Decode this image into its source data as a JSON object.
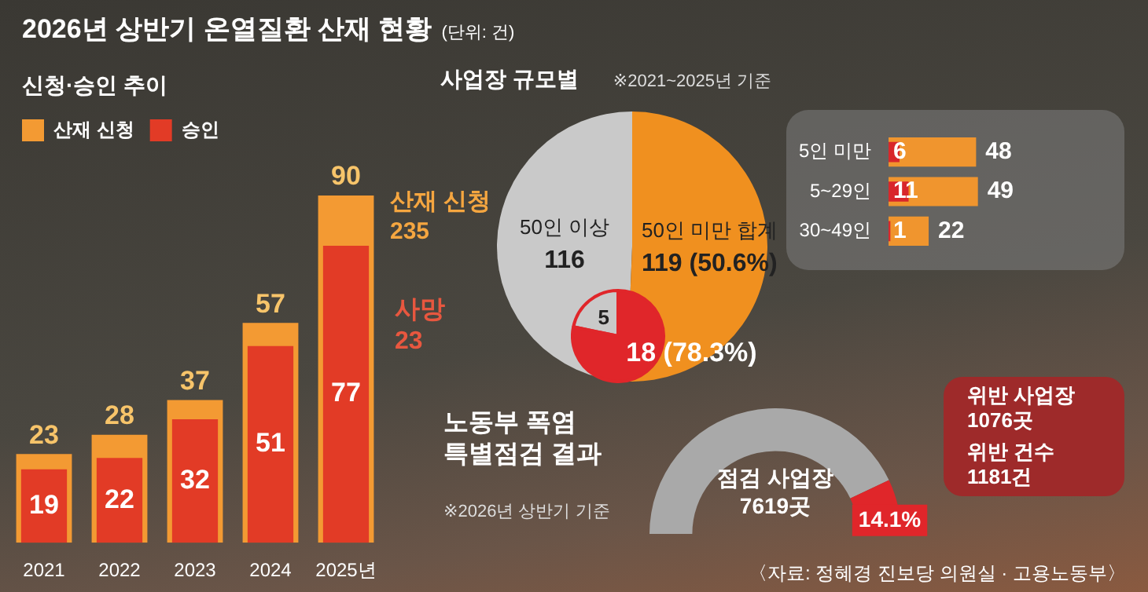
{
  "chart_data": [
    {
      "type": "bar",
      "title": "2026년 상반기 온열질환 산재 현황",
      "subtitle": "신청·승인 추이",
      "annotations": [
        "(단위: 건)"
      ],
      "categories": [
        "2021",
        "2022",
        "2023",
        "2024",
        "2025년"
      ],
      "series": [
        {
          "name": "산재 신청",
          "color": "#f39a33",
          "values": [
            23,
            28,
            37,
            57,
            90
          ]
        },
        {
          "name": "승인",
          "color": "#e23b26",
          "values": [
            19,
            22,
            32,
            51,
            77
          ]
        }
      ],
      "data_labels": true,
      "legend": "top left"
    },
    {
      "type": "pie",
      "title": "사업장 규모별",
      "subtitle": "※2021~2025년 기준",
      "annotations": [
        "산재 신청 235"
      ],
      "categories": [
        "50인 이상",
        "50인 미만 합계"
      ],
      "values": [
        116,
        119
      ],
      "colors": [
        "#c9c9c9",
        "#f0901f"
      ],
      "value_labels": [
        "116",
        "119 (50.6%)"
      ]
    },
    {
      "type": "pie",
      "title": "사망 23",
      "categories": [
        null,
        null
      ],
      "values": [
        5,
        18
      ],
      "colors": [
        "#c9c9c9",
        "#e0262a"
      ],
      "value_labels": [
        "5",
        "18 (78.3%)"
      ]
    },
    {
      "type": "bar",
      "orientation": "horizontal",
      "categories": [
        "5인 미만",
        "5~29인",
        "30~49인"
      ],
      "series": [
        {
          "color": "#f0952e",
          "values": [
            48,
            49,
            22
          ]
        },
        {
          "color": "#d8262b",
          "values": [
            6,
            11,
            1
          ]
        }
      ],
      "data_labels": true
    },
    {
      "type": "donut",
      "title": "노동부 폭염 특별점검 결과",
      "subtitle": "※2026년 상반기 기준",
      "categories": [
        null,
        null
      ],
      "values": [
        85.9,
        14.1
      ],
      "colors": [
        "#a9a9a9",
        "#e0262a"
      ],
      "value_labels": [
        null,
        "14.1%"
      ],
      "annotations": [
        "점검 사업장 7619곳",
        "위반 사업장 1076곳",
        "위반 건수 1181건",
        "〈자료: 정혜경 진보당 의원실 · 고용노동부〉"
      ]
    }
  ]
}
